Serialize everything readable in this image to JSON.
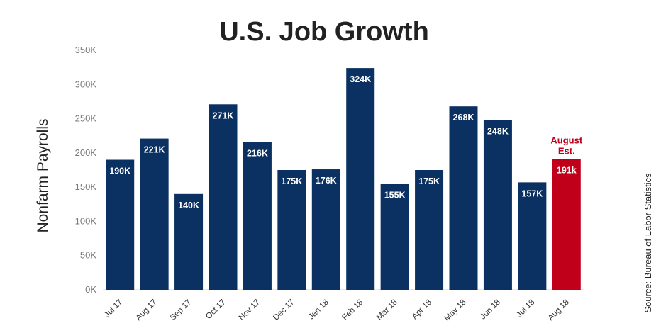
{
  "chart_data": {
    "type": "bar",
    "title": "U.S. Job Growth",
    "ylabel": "Nonfarm Payrolls",
    "xlabel": "",
    "source": "Source: Bureau of Labor Statistics",
    "categories": [
      "Jul 17",
      "Aug 17",
      "Sep 17",
      "Oct 17",
      "Nov 17",
      "Dec 17",
      "Jan 18",
      "Feb 18",
      "Mar 18",
      "Apr 18",
      "May 18",
      "Jun 18",
      "Jul 18",
      "Aug 18"
    ],
    "values": [
      190,
      221,
      140,
      271,
      216,
      175,
      176,
      324,
      155,
      175,
      268,
      248,
      157,
      191
    ],
    "value_labels": [
      "190K",
      "221K",
      "140K",
      "271K",
      "216K",
      "175K",
      "176K",
      "324K",
      "155K",
      "175K",
      "268K",
      "248K",
      "157K",
      "191k"
    ],
    "unit": "K",
    "ylim": [
      0,
      350
    ],
    "yticks": [
      "0K",
      "50K",
      "100K",
      "150K",
      "200K",
      "250K",
      "300K",
      "350K"
    ],
    "grid": false,
    "annotation": {
      "line1": "August",
      "line2": "Est."
    },
    "colors": {
      "bar": "#0a3161",
      "estimate_bar": "#c0001a",
      "annotation": "#c0001a"
    }
  }
}
